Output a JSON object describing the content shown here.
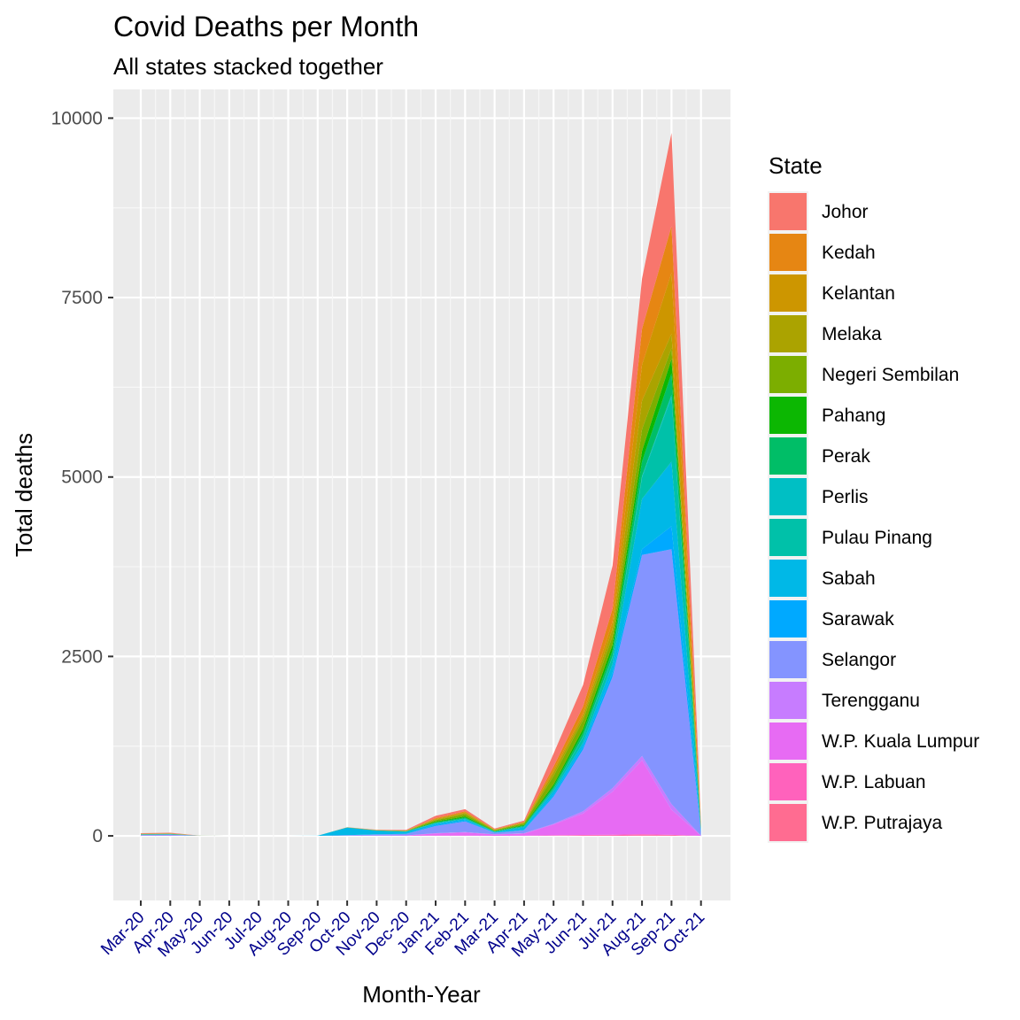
{
  "chart_data": {
    "type": "area",
    "stacked": true,
    "title": "Covid Deaths per Month",
    "subtitle": "All states stacked together",
    "xlabel": "Month-Year",
    "ylabel": "Total deaths",
    "ylim": [
      -900,
      10400
    ],
    "yticks": [
      0,
      2500,
      5000,
      7500,
      10000
    ],
    "categories": [
      "Mar-20",
      "Apr-20",
      "May-20",
      "Jun-20",
      "Jul-20",
      "Aug-20",
      "Sep-20",
      "Oct-20",
      "Nov-20",
      "Dec-20",
      "Jan-21",
      "Feb-21",
      "Mar-21",
      "Apr-21",
      "May-21",
      "Jun-21",
      "Jul-21",
      "Aug-21",
      "Sep-21",
      "Oct-21"
    ],
    "legend_title": "State",
    "legend_position": "right",
    "series": [
      {
        "name": "W.P. Putrajaya",
        "color": "#FF6C91",
        "values": [
          0,
          0,
          0,
          0,
          0,
          0,
          0,
          0,
          0,
          0,
          1,
          1,
          0,
          1,
          3,
          5,
          6,
          10,
          8,
          0
        ]
      },
      {
        "name": "W.P. Labuan",
        "color": "#FF62BC",
        "values": [
          0,
          0,
          0,
          0,
          0,
          0,
          0,
          0,
          0,
          1,
          3,
          2,
          0,
          1,
          5,
          8,
          10,
          14,
          6,
          0
        ]
      },
      {
        "name": "W.P. Kuala Lumpur",
        "color": "#E76BF3",
        "values": [
          4,
          5,
          0,
          0,
          0,
          0,
          0,
          1,
          4,
          5,
          30,
          45,
          20,
          30,
          150,
          300,
          600,
          1030,
          350,
          2
        ]
      },
      {
        "name": "Terengganu",
        "color": "#C77CFF",
        "values": [
          0,
          0,
          0,
          0,
          0,
          0,
          0,
          1,
          1,
          1,
          4,
          4,
          2,
          5,
          10,
          30,
          50,
          60,
          80,
          2
        ]
      },
      {
        "name": "Selangor",
        "color": "#8494FF",
        "values": [
          10,
          12,
          2,
          0,
          0,
          0,
          0,
          9,
          14,
          20,
          100,
          150,
          20,
          40,
          380,
          860,
          1550,
          2800,
          3550,
          30
        ]
      },
      {
        "name": "Sarawak",
        "color": "#00A9FF",
        "values": [
          2,
          3,
          0,
          0,
          0,
          0,
          0,
          0,
          2,
          2,
          15,
          12,
          2,
          5,
          25,
          40,
          60,
          80,
          320,
          18
        ]
      },
      {
        "name": "Sabah",
        "color": "#00B8E7",
        "values": [
          1,
          1,
          0,
          0,
          0,
          0,
          2,
          105,
          50,
          30,
          20,
          20,
          10,
          40,
          50,
          55,
          120,
          700,
          900,
          25
        ]
      },
      {
        "name": "Pulau Pinang",
        "color": "#00C1A9",
        "values": [
          1,
          1,
          0,
          0,
          0,
          0,
          0,
          0,
          1,
          1,
          5,
          10,
          5,
          10,
          30,
          80,
          100,
          300,
          900,
          15
        ]
      },
      {
        "name": "Perlis",
        "color": "#00BFC4",
        "values": [
          1,
          1,
          0,
          0,
          0,
          0,
          0,
          0,
          0,
          0,
          1,
          1,
          0,
          1,
          3,
          5,
          8,
          20,
          30,
          1
        ]
      },
      {
        "name": "Perak",
        "color": "#00BE67",
        "values": [
          2,
          2,
          0,
          0,
          0,
          0,
          0,
          1,
          2,
          3,
          10,
          12,
          5,
          10,
          30,
          60,
          80,
          200,
          300,
          10
        ]
      },
      {
        "name": "Pahang",
        "color": "#0CB702",
        "values": [
          3,
          3,
          0,
          0,
          0,
          0,
          0,
          1,
          2,
          3,
          10,
          15,
          5,
          10,
          30,
          50,
          80,
          150,
          200,
          5
        ]
      },
      {
        "name": "Negeri Sembilan",
        "color": "#7CAE00",
        "values": [
          2,
          2,
          1,
          0,
          0,
          0,
          0,
          1,
          2,
          3,
          20,
          30,
          10,
          20,
          120,
          120,
          120,
          300,
          150,
          5
        ]
      },
      {
        "name": "Melaka",
        "color": "#ABA300",
        "values": [
          1,
          1,
          0,
          0,
          0,
          0,
          0,
          0,
          1,
          2,
          10,
          15,
          5,
          10,
          50,
          50,
          100,
          400,
          200,
          3
        ]
      },
      {
        "name": "Kelantan",
        "color": "#CD9600",
        "values": [
          1,
          1,
          0,
          0,
          0,
          0,
          0,
          0,
          1,
          2,
          10,
          10,
          3,
          5,
          30,
          40,
          100,
          500,
          850,
          20
        ]
      },
      {
        "name": "Kedah",
        "color": "#E68613",
        "values": [
          2,
          2,
          0,
          0,
          0,
          0,
          0,
          0,
          1,
          2,
          10,
          15,
          5,
          10,
          50,
          100,
          180,
          500,
          650,
          12
        ]
      },
      {
        "name": "Johor",
        "color": "#F8766D",
        "values": [
          8,
          10,
          0,
          0,
          0,
          0,
          0,
          1,
          5,
          10,
          30,
          30,
          10,
          15,
          180,
          300,
          600,
          700,
          1300,
          50
        ]
      }
    ],
    "legend_order": [
      "Johor",
      "Kedah",
      "Kelantan",
      "Melaka",
      "Negeri Sembilan",
      "Pahang",
      "Perak",
      "Perlis",
      "Pulau Pinang",
      "Sabah",
      "Sarawak",
      "Selangor",
      "Terengganu",
      "W.P. Kuala Lumpur",
      "W.P. Labuan",
      "W.P. Putrajaya"
    ]
  }
}
